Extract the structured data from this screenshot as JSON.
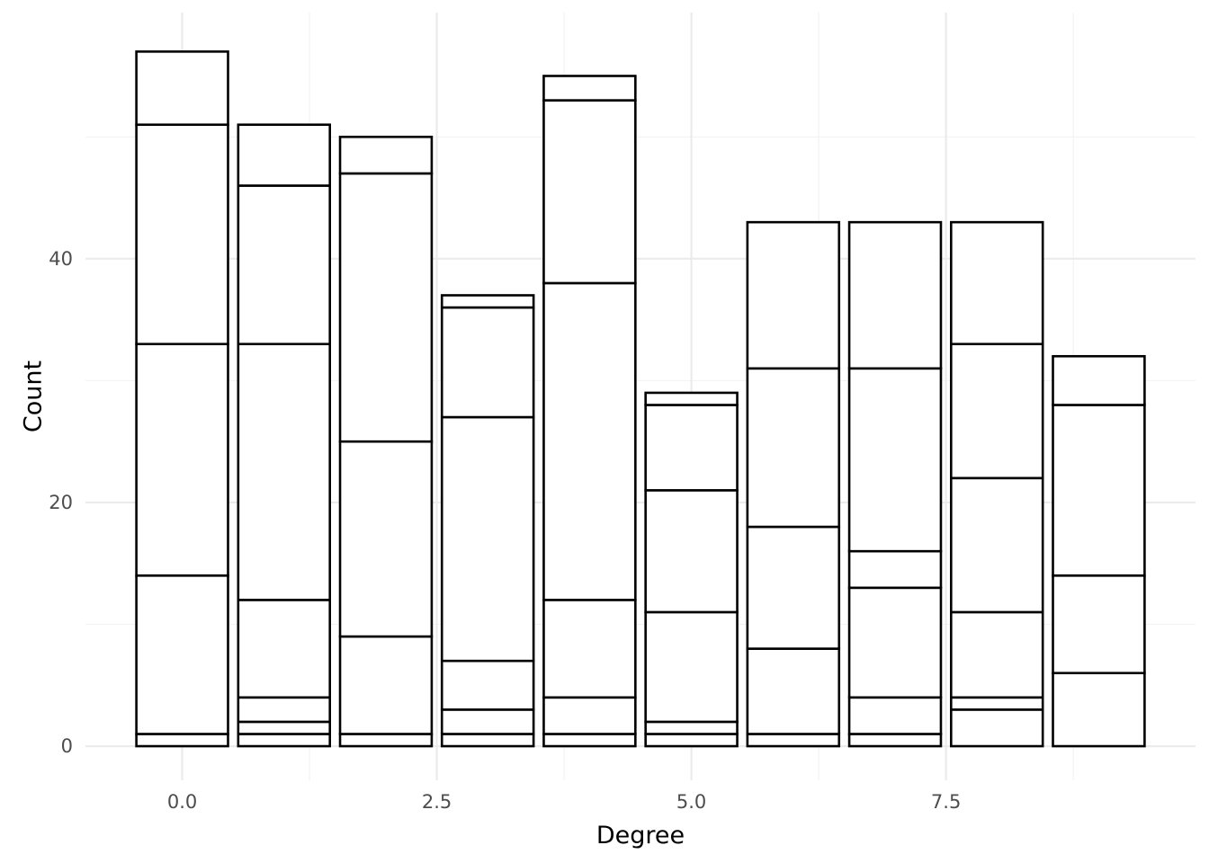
{
  "chart_data": {
    "type": "bar",
    "stacked": true,
    "title": "",
    "xlabel": "Degree",
    "ylabel": "Count",
    "xlim": [
      -0.95,
      9.95
    ],
    "ylim": [
      -2.8,
      60.2
    ],
    "x_ticks": [
      0.0,
      2.5,
      5.0,
      7.5
    ],
    "x_tick_labels": [
      "0.0",
      "2.5",
      "5.0",
      "7.5"
    ],
    "y_ticks": [
      0,
      20,
      40
    ],
    "y_tick_labels": [
      "0",
      "20",
      "40"
    ],
    "grid": true,
    "bar_width": 0.9,
    "x": [
      0,
      1,
      2,
      3,
      4,
      5,
      6,
      7,
      8,
      9
    ],
    "segment_boundaries": [
      [
        0,
        1,
        14,
        33,
        51,
        57
      ],
      [
        0,
        1,
        2,
        4,
        12,
        33,
        46,
        51
      ],
      [
        0,
        1,
        9,
        25,
        47,
        50
      ],
      [
        0,
        1,
        3,
        7,
        27,
        36,
        37
      ],
      [
        0,
        1,
        4,
        12,
        38,
        53,
        55
      ],
      [
        0,
        1,
        2,
        11,
        21,
        28,
        29
      ],
      [
        0,
        1,
        8,
        18,
        31,
        43
      ],
      [
        0,
        1,
        4,
        13,
        16,
        31,
        43
      ],
      [
        0,
        3,
        4,
        11,
        22,
        33,
        43
      ],
      [
        0,
        6,
        14,
        28,
        32
      ]
    ],
    "totals": [
      57,
      51,
      50,
      37,
      55,
      29,
      43,
      43,
      43,
      32
    ],
    "fill_color": "#ffffff",
    "outline_color": "#000000",
    "grid_major_color": "#ebebeb",
    "grid_minor_color": "#f2f2f2"
  }
}
